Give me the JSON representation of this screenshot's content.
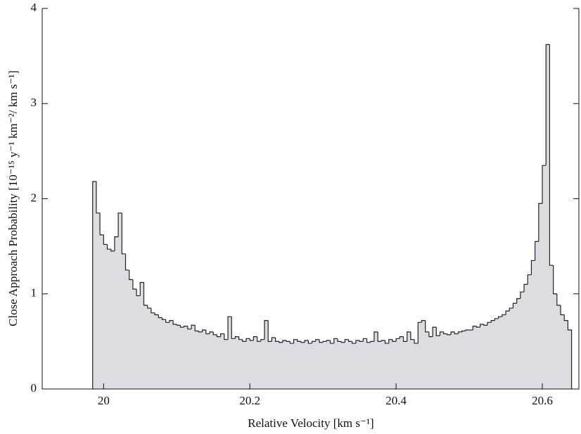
{
  "chart_data": {
    "type": "histogram",
    "xlabel": "Relative Velocity [km s⁻¹]",
    "ylabel": "Close Approach Probability [10⁻¹⁵ y⁻¹ km⁻²/ km s⁻¹]",
    "bins": [
      19.985,
      19.99,
      19.995,
      20,
      20.005,
      20.01,
      20.015,
      20.02,
      20.025,
      20.03,
      20.035,
      20.04,
      20.045,
      20.05,
      20.055,
      20.06,
      20.065,
      20.07,
      20.075,
      20.08,
      20.085,
      20.09,
      20.095,
      20.1,
      20.105,
      20.11,
      20.115,
      20.12,
      20.125,
      20.13,
      20.135,
      20.14,
      20.145,
      20.15,
      20.155,
      20.16,
      20.165,
      20.17,
      20.175,
      20.18,
      20.185,
      20.19,
      20.195,
      20.2,
      20.205,
      20.21,
      20.215,
      20.22,
      20.225,
      20.23,
      20.235,
      20.24,
      20.245,
      20.25,
      20.255,
      20.26,
      20.265,
      20.27,
      20.275,
      20.28,
      20.285,
      20.29,
      20.295,
      20.3,
      20.305,
      20.31,
      20.315,
      20.32,
      20.325,
      20.33,
      20.335,
      20.34,
      20.345,
      20.35,
      20.355,
      20.36,
      20.365,
      20.37,
      20.375,
      20.38,
      20.385,
      20.39,
      20.395,
      20.4,
      20.405,
      20.41,
      20.415,
      20.42,
      20.425,
      20.43,
      20.435,
      20.44,
      20.445,
      20.45,
      20.455,
      20.46,
      20.465,
      20.47,
      20.475,
      20.48,
      20.485,
      20.49,
      20.495,
      20.5,
      20.505,
      20.51,
      20.515,
      20.52,
      20.525,
      20.53,
      20.535,
      20.54,
      20.545,
      20.55,
      20.555,
      20.56,
      20.565,
      20.57,
      20.575,
      20.58,
      20.585,
      20.59,
      20.595,
      20.6,
      20.605,
      20.61,
      20.615,
      20.62,
      20.625,
      20.63,
      20.635,
      20.64
    ],
    "values": [
      2.18,
      1.85,
      1.62,
      1.52,
      1.47,
      1.45,
      1.6,
      1.85,
      1.42,
      1.25,
      1.15,
      1.05,
      0.98,
      1.12,
      0.88,
      0.85,
      0.8,
      0.78,
      0.75,
      0.73,
      0.7,
      0.72,
      0.68,
      0.67,
      0.65,
      0.66,
      0.63,
      0.67,
      0.61,
      0.6,
      0.62,
      0.58,
      0.6,
      0.57,
      0.55,
      0.58,
      0.52,
      0.76,
      0.53,
      0.55,
      0.52,
      0.5,
      0.53,
      0.51,
      0.55,
      0.5,
      0.52,
      0.72,
      0.5,
      0.54,
      0.5,
      0.49,
      0.51,
      0.5,
      0.48,
      0.52,
      0.5,
      0.49,
      0.51,
      0.48,
      0.5,
      0.52,
      0.49,
      0.5,
      0.51,
      0.48,
      0.53,
      0.5,
      0.49,
      0.52,
      0.5,
      0.48,
      0.51,
      0.5,
      0.53,
      0.49,
      0.5,
      0.6,
      0.5,
      0.51,
      0.48,
      0.52,
      0.5,
      0.53,
      0.55,
      0.5,
      0.6,
      0.52,
      0.48,
      0.7,
      0.72,
      0.6,
      0.55,
      0.65,
      0.56,
      0.6,
      0.58,
      0.57,
      0.6,
      0.58,
      0.6,
      0.61,
      0.62,
      0.62,
      0.66,
      0.65,
      0.68,
      0.67,
      0.7,
      0.72,
      0.74,
      0.76,
      0.78,
      0.82,
      0.85,
      0.9,
      0.95,
      1.02,
      1.1,
      1.2,
      1.35,
      1.55,
      1.95,
      2.35,
      3.62,
      1.3,
      1,
      0.88,
      0.78,
      0.72,
      0.62
    ],
    "color": "#dcdde2",
    "edgecolor": "#222222",
    "xlim": [
      19.916,
      20.65
    ],
    "xticks": [
      20,
      20.2,
      20.4,
      20.6
    ],
    "ylim": [
      0,
      4
    ],
    "yticks": [
      0,
      1,
      2,
      3,
      4
    ]
  }
}
